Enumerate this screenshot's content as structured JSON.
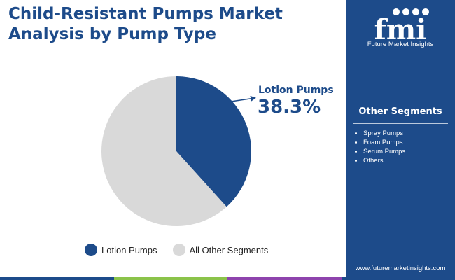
{
  "header": {
    "title": "Child-Resistant Pumps Market Analysis by Pump Type"
  },
  "chart_data": {
    "type": "pie",
    "slices": [
      {
        "label": "Lotion Pumps",
        "value": 38.3,
        "color": "#1d4b8a"
      },
      {
        "label": "All Other Segments",
        "value": 61.7,
        "color": "#d9d9d9"
      }
    ],
    "callout": {
      "label": "Lotion Pumps",
      "value_text": "38.3%"
    },
    "legend": [
      "Lotion Pumps",
      "All Other Segments"
    ],
    "legend_position": "bottom"
  },
  "sidebar": {
    "logo_text": "fmi",
    "logo_subtitle": "Future Market Insights",
    "segments_title": "Other Segments",
    "segments": [
      "Spray Pumps",
      "Foam Pumps",
      "Serum Pumps",
      "Others"
    ],
    "url": "www.futuremarketinsights.com"
  },
  "colors": {
    "brand_blue": "#1d4b8a",
    "other_gray": "#d9d9d9",
    "accent_bar": [
      "#1d4b8a",
      "#8bc34a",
      "#8e44ad",
      "#1d4b8a"
    ]
  }
}
